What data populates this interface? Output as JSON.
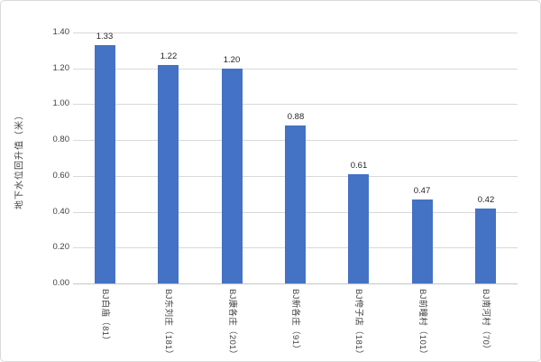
{
  "chart_data": {
    "type": "bar",
    "title": "",
    "ylabel": "地下水位回升值（米）",
    "xlabel": "",
    "categories": [
      "BJ白庙（81）",
      "BJ东刘庄（181）",
      "BJ康各庄（201）",
      "BJ新各庄（91）",
      "BJ侉子店（181）",
      "BJ前疃村（101）",
      "BJ南河村（70）"
    ],
    "values": [
      1.33,
      1.22,
      1.2,
      0.88,
      0.61,
      0.47,
      0.42
    ],
    "data_labels": [
      "1.33",
      "1.22",
      "1.20",
      "0.88",
      "0.61",
      "0.47",
      "0.42"
    ],
    "ylim": [
      0,
      1.4
    ],
    "ytick_step": 0.2,
    "ytick_labels": [
      "0.00",
      "0.20",
      "0.40",
      "0.60",
      "0.80",
      "1.00",
      "1.20",
      "1.40"
    ],
    "grid": true,
    "legend": "none",
    "category_label_rotation_deg": 90,
    "colors": {
      "bar": "#4472C4",
      "gridline": "#d9d9d9",
      "axis_line": "#c6c6c6",
      "text": "#404040",
      "frame_border": "#d9d9d9",
      "background": "#ffffff"
    }
  }
}
